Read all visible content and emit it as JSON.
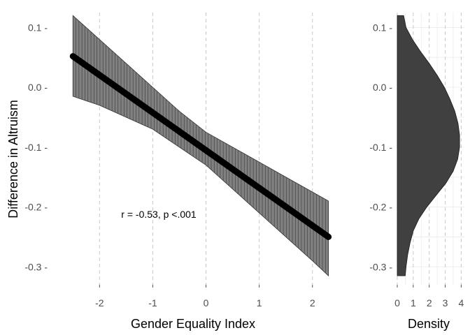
{
  "chart_data": [
    {
      "type": "line",
      "xlabel": "Gender Equality Index",
      "ylabel": "Difference in Altruism",
      "xlim": [
        -2.95,
        2.45
      ],
      "ylim": [
        -0.33,
        0.125
      ],
      "xticks": [
        -2,
        -1,
        0,
        1,
        2
      ],
      "yticks": [
        -0.3,
        -0.2,
        -0.1,
        0.0,
        0.1
      ],
      "xtick_labels": [
        "-2",
        "-1",
        "0",
        "1",
        "2"
      ],
      "ytick_labels": [
        "-0.3 -",
        "-0.2 -",
        "-0.1 -",
        "0.0 -",
        "0.1 -"
      ],
      "grid": "vertical dashed",
      "annotation": "r = -0.53, p <.001",
      "fit_line": {
        "x": [
          -2.5,
          2.3
        ],
        "y": [
          0.052,
          -0.25
        ]
      },
      "ci_band": {
        "x": [
          -2.5,
          -2.0,
          -1.5,
          -1.0,
          -0.5,
          0.0,
          0.5,
          1.0,
          1.5,
          2.0,
          2.3
        ],
        "upper": [
          0.12,
          0.08,
          0.04,
          0.0,
          -0.04,
          -0.075,
          -0.1,
          -0.125,
          -0.15,
          -0.175,
          -0.19
        ],
        "lower": [
          -0.015,
          -0.03,
          -0.05,
          -0.07,
          -0.1,
          -0.13,
          -0.17,
          -0.21,
          -0.25,
          -0.29,
          -0.315
        ]
      }
    },
    {
      "type": "area",
      "xlabel": "Density",
      "xlim": [
        0,
        4.2
      ],
      "ylim": [
        -0.33,
        0.125
      ],
      "xticks": [
        0,
        1,
        2,
        3,
        4
      ],
      "xtick_labels": [
        "0",
        "1",
        "2",
        "3",
        "4"
      ],
      "yticks": [
        -0.3,
        -0.2,
        -0.1,
        0.0,
        0.1
      ],
      "ytick_labels": [
        "-0.3 -",
        "-0.2 -",
        "-0.1 -",
        "0.0 -",
        "0.1 -"
      ],
      "grid": "both",
      "density": {
        "y": [
          0.12,
          0.1,
          0.08,
          0.06,
          0.04,
          0.02,
          0.0,
          -0.02,
          -0.04,
          -0.06,
          -0.08,
          -0.1,
          -0.12,
          -0.14,
          -0.16,
          -0.18,
          -0.2,
          -0.22,
          -0.24,
          -0.26,
          -0.28,
          -0.3,
          -0.315
        ],
        "x": [
          0.4,
          0.55,
          0.95,
          1.45,
          2.0,
          2.5,
          2.95,
          3.3,
          3.6,
          3.8,
          3.9,
          3.9,
          3.78,
          3.5,
          3.05,
          2.45,
          1.85,
          1.35,
          1.0,
          0.8,
          0.65,
          0.55,
          0.5
        ]
      }
    }
  ]
}
